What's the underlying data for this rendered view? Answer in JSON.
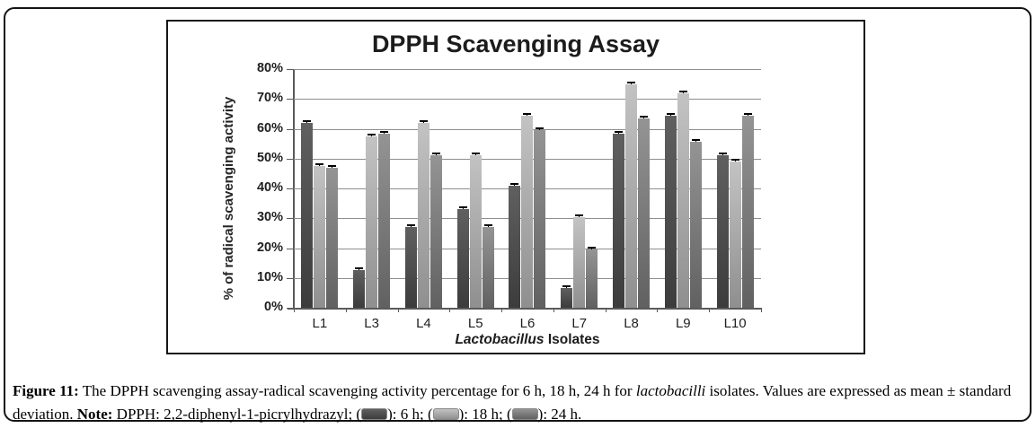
{
  "chart_data": {
    "type": "bar",
    "title": "DPPH Scavenging Assay",
    "xlabel_italic": "Lactobacillus",
    "xlabel_rest": " Isolates",
    "ylabel": "%  of radical scavenging activity",
    "categories": [
      "L1",
      "L3",
      "L4",
      "L5",
      "L6",
      "L7",
      "L8",
      "L9",
      "L10"
    ],
    "series": [
      {
        "name": "6 h",
        "color_top": "#606060",
        "color_bottom": "#3c3c3c",
        "values": [
          62,
          12.5,
          27,
          33,
          41,
          6.5,
          58.5,
          64.5,
          51
        ]
      },
      {
        "name": "18 h",
        "color_top": "#c3c3c3",
        "color_bottom": "#8f8f8f",
        "values": [
          47.5,
          57.5,
          62,
          51,
          64.5,
          30.5,
          75,
          72,
          49
        ]
      },
      {
        "name": "24 h",
        "color_top": "#949494",
        "color_bottom": "#616161",
        "values": [
          47,
          58.5,
          51,
          27,
          59.5,
          19.5,
          63.5,
          55.5,
          64.5
        ]
      }
    ],
    "error_bar": 1,
    "ylim": [
      0,
      80
    ],
    "ytick_step": 10,
    "ytick_suffix": "%",
    "grid": true,
    "legend_position": "caption"
  },
  "caption": {
    "label": "Figure 11:",
    "part1": " The DPPH scavenging assay-radical scavenging activity percentage for 6 h, 18 h, 24 h for ",
    "italic_word": "lactobacilli",
    "part2": " isolates. Values are expressed as mean ± standard deviation. ",
    "note_label": "Note:",
    "part3": " DPPH: 2,2-diphenyl-1-picrylhydrazyl; (",
    "part4": "): 6 h; (",
    "part5": "): 18 h; (",
    "part6": "): 24 h."
  },
  "colors": {
    "grid_line": "#8e8e8e",
    "axis_line": "#5a5a5a",
    "text": "#1c1c1c",
    "chart_border": "#161616",
    "outer_border": "#141414",
    "error_bar": "#000000"
  }
}
